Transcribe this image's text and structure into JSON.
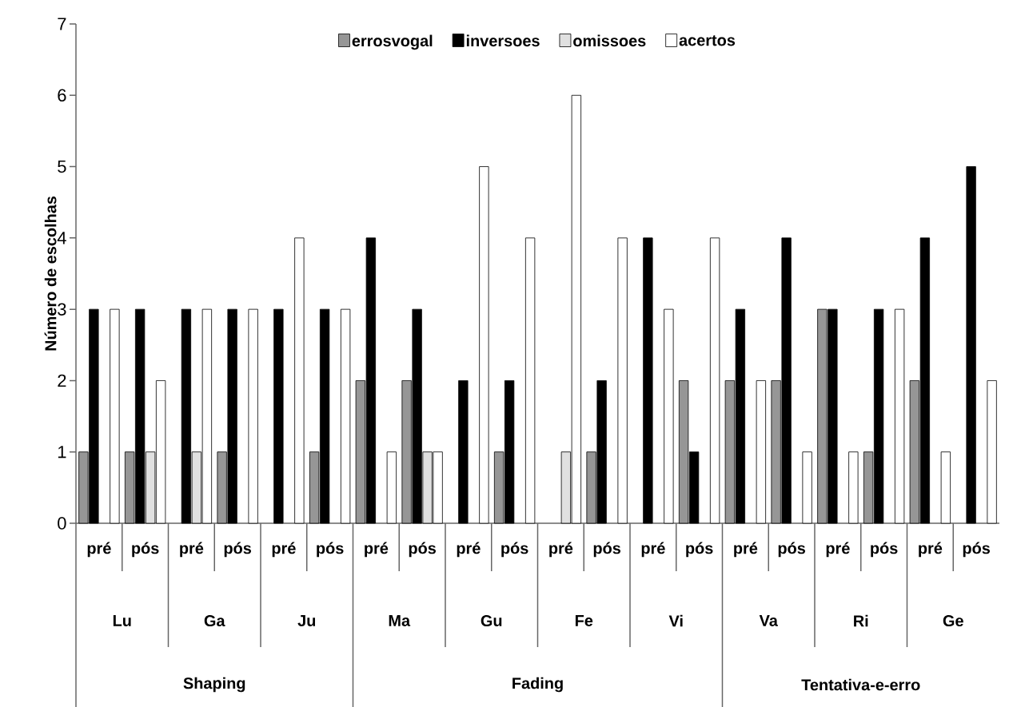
{
  "chart_data": {
    "type": "bar",
    "categories": [
      "pré",
      "pós",
      "pré",
      "pós",
      "pré",
      "pós",
      "pré",
      "pós",
      "pré",
      "pós",
      "pré",
      "pós",
      "pré",
      "pós",
      "pré",
      "pós",
      "pré",
      "pós",
      "pré",
      "pós"
    ],
    "series": [
      {
        "name": "errosvogal",
        "color": "#969696",
        "values": [
          1,
          1,
          0,
          1,
          0,
          1,
          2,
          2,
          0,
          1,
          0,
          1,
          0,
          2,
          2,
          2,
          3,
          1,
          2,
          0
        ]
      },
      {
        "name": "inversoes",
        "color": "#000000",
        "values": [
          3,
          3,
          3,
          3,
          3,
          3,
          4,
          3,
          2,
          2,
          0,
          2,
          4,
          1,
          3,
          4,
          3,
          3,
          4,
          5
        ]
      },
      {
        "name": "omissoes",
        "color": "#e0e0e0",
        "values": [
          0,
          1,
          1,
          0,
          0,
          0,
          0,
          1,
          0,
          0,
          1,
          0,
          0,
          0,
          0,
          0,
          0,
          0,
          0,
          0
        ]
      },
      {
        "name": "acertos",
        "color": "#ffffff",
        "values": [
          3,
          2,
          3,
          3,
          4,
          3,
          1,
          1,
          5,
          4,
          6,
          4,
          3,
          4,
          2,
          1,
          1,
          3,
          1,
          2
        ]
      }
    ],
    "ylabel": "Número de escolhas",
    "ylim": [
      0,
      7
    ],
    "yticks": [
      0,
      1,
      2,
      3,
      4,
      5,
      6,
      7
    ],
    "legend": "top",
    "grid": false,
    "annotations": [
      "Lu",
      "Ga",
      "Ju",
      "Ma",
      "Gu",
      "Fe",
      "Vi",
      "Va",
      "Ri",
      "Ge",
      "Shaping",
      "Fading",
      "Tentativa-e-erro"
    ]
  }
}
